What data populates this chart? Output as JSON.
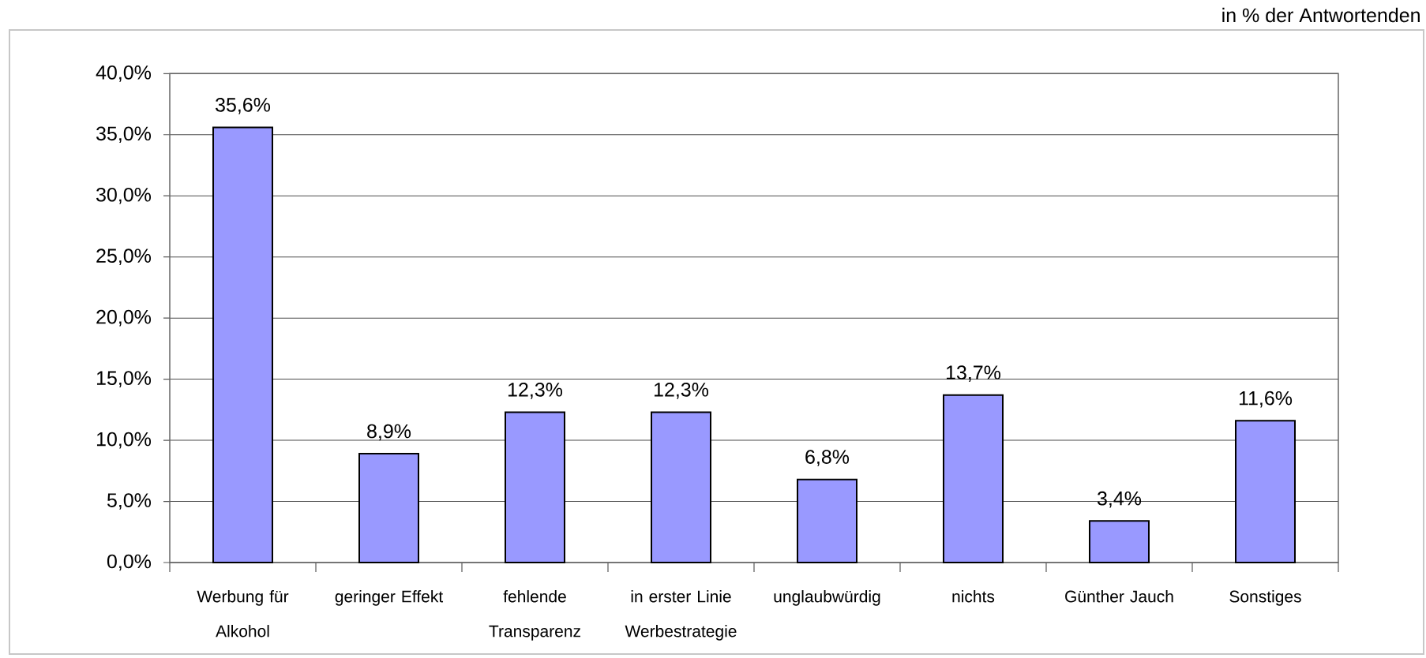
{
  "chart_data": {
    "type": "bar",
    "categories": [
      "Werbung für Alkohol",
      "geringer Effekt",
      "fehlende Transparenz",
      "in erster Linie Werbestrategie",
      "unglaubwürdig",
      "nichts",
      "Günther Jauch",
      "Sonstiges"
    ],
    "values": [
      35.6,
      8.9,
      12.3,
      12.3,
      6.8,
      13.7,
      3.4,
      11.6
    ],
    "value_labels": [
      "35,6%",
      "8,9%",
      "12,3%",
      "12,3%",
      "6,8%",
      "13,7%",
      "3,4%",
      "11,6%"
    ],
    "color": "#9999ff",
    "ylim": [
      0,
      40
    ],
    "yticks": [
      {
        "value": 0,
        "label": "0,0%"
      },
      {
        "value": 5,
        "label": "5,0%"
      },
      {
        "value": 10,
        "label": "10,0%"
      },
      {
        "value": 15,
        "label": "15,0%"
      },
      {
        "value": 20,
        "label": "20,0%"
      },
      {
        "value": 25,
        "label": "25,0%"
      },
      {
        "value": 30,
        "label": "30,0%"
      },
      {
        "value": 35,
        "label": "35,0%"
      },
      {
        "value": 40,
        "label": "40,0%"
      }
    ],
    "grid": "y",
    "annotations": [
      "in % der Antwortenden"
    ]
  }
}
